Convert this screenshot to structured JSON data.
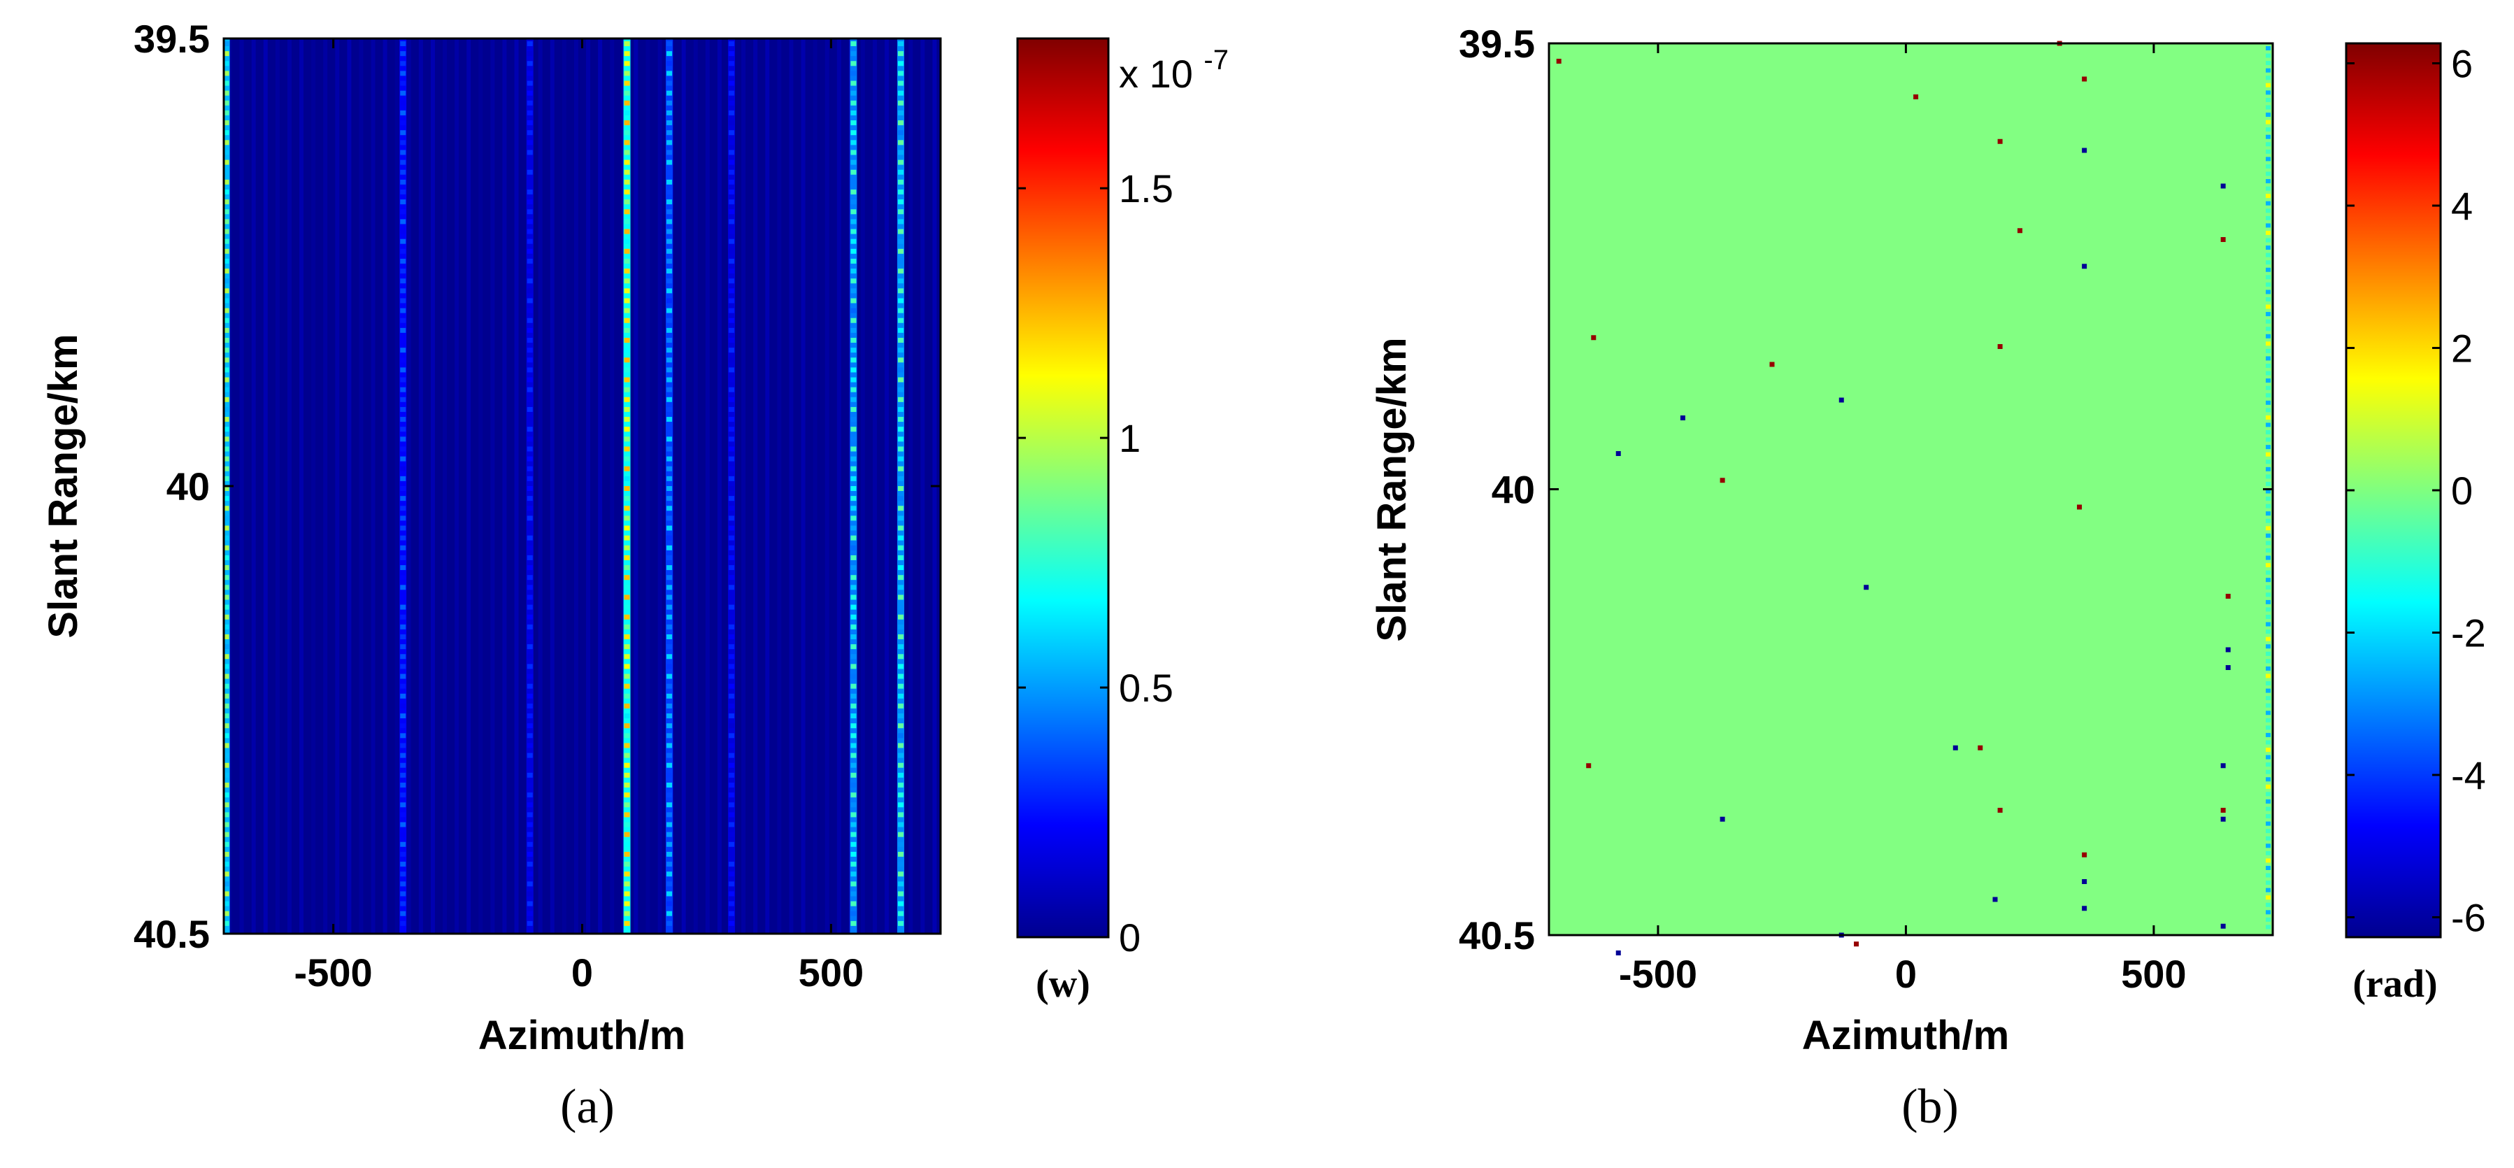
{
  "chart_data": [
    {
      "panel_label": "(a)",
      "type": "heatmap",
      "xlabel": "Azimuth/m",
      "ylabel": "Slant Range/km",
      "xlim": [
        -720,
        720
      ],
      "ylim": [
        39.5,
        40.5
      ],
      "y_reversed": true,
      "x_ticks": [
        -500,
        0,
        500
      ],
      "x_tick_labels": [
        "-500",
        "0",
        "500"
      ],
      "y_ticks": [
        39.5,
        40,
        40.5
      ],
      "y_tick_labels": [
        "39.5",
        "40",
        "40.5"
      ],
      "background_value": 0.05,
      "streak_azimuths": [
        -715,
        -360,
        -105,
        90,
        175,
        300,
        545,
        640
      ],
      "streak_peak_values": [
        1.0,
        0.4,
        0.3,
        1.25,
        0.6,
        0.3,
        0.8,
        0.85
      ],
      "colorbar": {
        "min": 0,
        "max": 1.8,
        "ticks": [
          0,
          0.5,
          1,
          1.5
        ],
        "tick_labels": [
          "0",
          "0.5",
          "1",
          "1.5"
        ],
        "scale_label": "x 10",
        "scale_exponent": "-7",
        "unit_label": "(w)"
      }
    },
    {
      "panel_label": "(b)",
      "type": "heatmap",
      "xlabel": "Azimuth/m",
      "ylabel": "Slant Range/km",
      "xlim": [
        -720,
        740
      ],
      "ylim": [
        39.5,
        40.5
      ],
      "y_reversed": true,
      "x_ticks": [
        -500,
        0,
        500
      ],
      "x_tick_labels": [
        "-500",
        "0",
        "500"
      ],
      "y_ticks": [
        39.5,
        40,
        40.5
      ],
      "y_tick_labels": [
        "39.5",
        "40",
        "40.5"
      ],
      "background_value": 0.3,
      "scattered_points": [
        {
          "x": -700,
          "y": 39.52,
          "v": 6
        },
        {
          "x": 310,
          "y": 39.5,
          "v": 6
        },
        {
          "x": 360,
          "y": 39.54,
          "v": 6
        },
        {
          "x": 20,
          "y": 39.56,
          "v": 6
        },
        {
          "x": 190,
          "y": 39.61,
          "v": 6
        },
        {
          "x": 360,
          "y": 39.62,
          "v": -6
        },
        {
          "x": 640,
          "y": 39.66,
          "v": -6
        },
        {
          "x": 230,
          "y": 39.71,
          "v": 6
        },
        {
          "x": 640,
          "y": 39.72,
          "v": 6
        },
        {
          "x": 360,
          "y": 39.75,
          "v": -6
        },
        {
          "x": -630,
          "y": 39.83,
          "v": 6
        },
        {
          "x": 190,
          "y": 39.84,
          "v": 6
        },
        {
          "x": -270,
          "y": 39.86,
          "v": 6
        },
        {
          "x": -130,
          "y": 39.9,
          "v": -6
        },
        {
          "x": -450,
          "y": 39.92,
          "v": -6
        },
        {
          "x": -580,
          "y": 39.96,
          "v": -6
        },
        {
          "x": -370,
          "y": 39.99,
          "v": 6
        },
        {
          "x": 350,
          "y": 40.02,
          "v": 6
        },
        {
          "x": -80,
          "y": 40.11,
          "v": -6
        },
        {
          "x": 650,
          "y": 40.12,
          "v": 6
        },
        {
          "x": 650,
          "y": 40.18,
          "v": -6
        },
        {
          "x": 650,
          "y": 40.2,
          "v": -6
        },
        {
          "x": 100,
          "y": 40.29,
          "v": -6
        },
        {
          "x": 150,
          "y": 40.29,
          "v": 6
        },
        {
          "x": -640,
          "y": 40.31,
          "v": 6
        },
        {
          "x": 640,
          "y": 40.31,
          "v": -6
        },
        {
          "x": 190,
          "y": 40.36,
          "v": 6
        },
        {
          "x": -370,
          "y": 40.37,
          "v": -6
        },
        {
          "x": 640,
          "y": 40.36,
          "v": 6
        },
        {
          "x": 640,
          "y": 40.37,
          "v": -6
        },
        {
          "x": 360,
          "y": 40.41,
          "v": 6
        },
        {
          "x": 360,
          "y": 40.44,
          "v": -6
        },
        {
          "x": 180,
          "y": 40.46,
          "v": -6
        },
        {
          "x": 360,
          "y": 40.47,
          "v": -6
        },
        {
          "x": 640,
          "y": 40.49,
          "v": -6
        },
        {
          "x": -130,
          "y": 40.5,
          "v": -6
        },
        {
          "x": -100,
          "y": 40.51,
          "v": 6
        },
        {
          "x": -580,
          "y": 40.52,
          "v": -6
        }
      ],
      "colorbar": {
        "min": -6.28,
        "max": 6.28,
        "ticks": [
          -6,
          -4,
          -2,
          0,
          2,
          4,
          6
        ],
        "tick_labels": [
          "-6",
          "-4",
          "-2",
          "0",
          "2",
          "4",
          "6"
        ],
        "unit_label": "(rad)"
      }
    }
  ]
}
